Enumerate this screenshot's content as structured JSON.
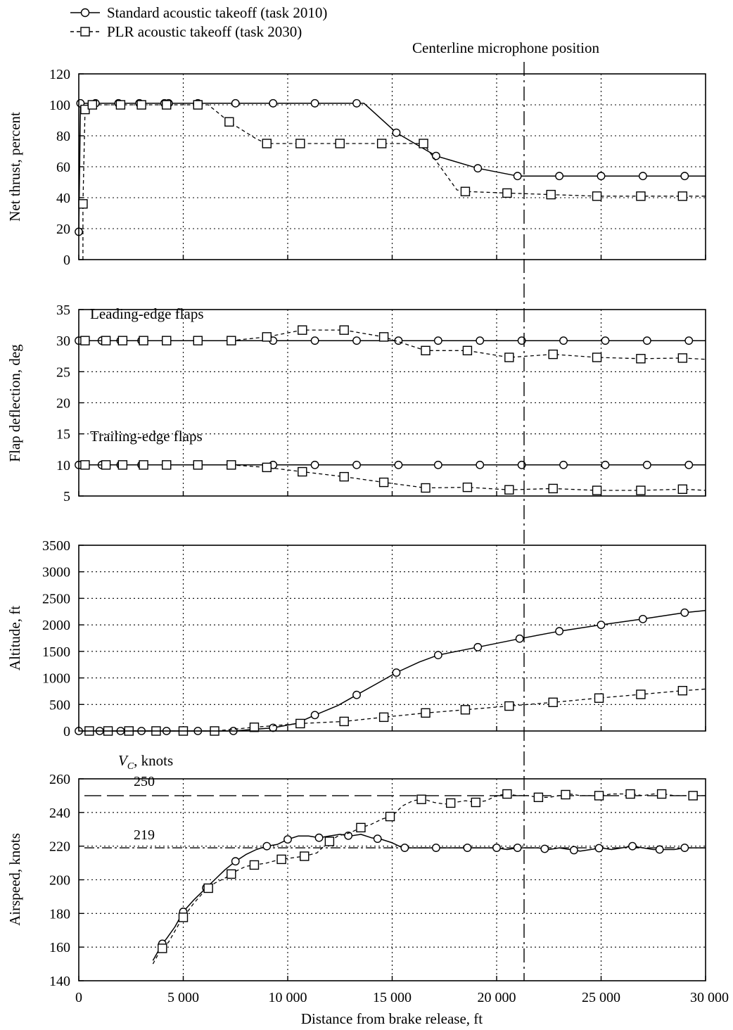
{
  "legend": {
    "standard": "Standard acoustic takeoff (task 2010)",
    "plr": "PLR acoustic takeoff (task 2030)"
  },
  "annotations": {
    "mic_label": "Centerline microphone position",
    "leading_edge": "Leading-edge flaps",
    "trailing_edge": "Trailing-edge flaps",
    "vc_label_main": "V",
    "vc_label_sub": "C",
    "vc_label_rest": ", knots",
    "line_250": "250",
    "line_219": "219"
  },
  "x_axis": {
    "label": "Distance from brake release, ft",
    "ticks": [
      0,
      5000,
      10000,
      15000,
      20000,
      25000,
      30000
    ],
    "tick_labels": [
      "0",
      "5 000",
      "10 000",
      "15 000",
      "20 000",
      "25 000",
      "30 000"
    ]
  },
  "chart_data": [
    {
      "type": "line",
      "ylabel": "Net thrust, percent",
      "xlim": [
        0,
        30000
      ],
      "ylim": [
        0,
        120
      ],
      "yticks": [
        0,
        20,
        40,
        60,
        80,
        100,
        120
      ],
      "series": [
        {
          "name": "Standard acoustic takeoff (task 2010)",
          "x": [
            0,
            80,
            800,
            1900,
            2900,
            4100,
            4300,
            5700,
            7500,
            9300,
            11300,
            13300,
            13650,
            15200,
            17100,
            19100,
            21000,
            23000,
            25000,
            27000,
            29000,
            30000
          ],
          "y": [
            18,
            101,
            101,
            101,
            101,
            101,
            101,
            101,
            101,
            101,
            101,
            101,
            101,
            82,
            67,
            59,
            54,
            54,
            54,
            54,
            54,
            54
          ],
          "markers": [
            0,
            80,
            800,
            1900,
            2900,
            4100,
            4300,
            5700,
            7500,
            9300,
            11300,
            13300,
            15200,
            17100,
            19100,
            21000,
            23000,
            25000,
            27000,
            29000
          ]
        },
        {
          "name": "PLR acoustic takeoff (task 2030)",
          "x": [
            200,
            200,
            300,
            650,
            2000,
            3000,
            4200,
            5700,
            6200,
            7200,
            8500,
            9000,
            10600,
            12500,
            14500,
            16500,
            17300,
            18100,
            18500,
            20500,
            22600,
            24800,
            26900,
            28900,
            30000
          ],
          "y": [
            0,
            36,
            97,
            100,
            100,
            100,
            100,
            100,
            100,
            89,
            78,
            75,
            75,
            75,
            75,
            75,
            60,
            45,
            44,
            43,
            42,
            41,
            41,
            41,
            41
          ],
          "markers": [
            300,
            650,
            2000,
            3000,
            4200,
            5700,
            7200,
            9000,
            10600,
            12500,
            14500,
            16500,
            18500,
            20500,
            22600,
            24800,
            26900,
            28900,
            200
          ]
        }
      ]
    },
    {
      "type": "line",
      "ylabel": "Flap deflection, deg",
      "xlim": [
        0,
        30000
      ],
      "ylim": [
        5,
        35
      ],
      "yticks": [
        5,
        10,
        15,
        20,
        25,
        30,
        35
      ],
      "series": [
        {
          "name": "Standard acoustic takeoff (task 2010) – leading edge",
          "x": [
            0,
            1100,
            2000,
            3000,
            4200,
            5700,
            7300,
            9300,
            11300,
            13300,
            15300,
            17200,
            19200,
            21200,
            23200,
            25200,
            27200,
            29200,
            30000
          ],
          "y": [
            30,
            30,
            30,
            30,
            30,
            30,
            30,
            30,
            30,
            30,
            30,
            30,
            30,
            30,
            30,
            30,
            30,
            30,
            30
          ],
          "markers": [
            0,
            1100,
            2000,
            3000,
            4200,
            5700,
            7300,
            9300,
            11300,
            13300,
            15300,
            17200,
            19200,
            21200,
            23200,
            25200,
            27200,
            29200
          ]
        },
        {
          "name": "Standard acoustic takeoff (task 2010) – trailing edge",
          "x": [
            0,
            1100,
            2000,
            3000,
            4200,
            5700,
            7300,
            9300,
            11300,
            13300,
            15300,
            17200,
            19200,
            21200,
            23200,
            25200,
            27200,
            29200,
            30000
          ],
          "y": [
            10,
            10,
            10,
            10,
            10,
            10,
            10,
            10,
            10,
            10,
            10,
            10,
            10,
            10,
            10,
            10,
            10,
            10,
            10
          ],
          "markers": [
            0,
            1100,
            2000,
            3000,
            4200,
            5700,
            7300,
            9300,
            11300,
            13300,
            15300,
            17200,
            19200,
            21200,
            23200,
            25200,
            27200,
            29200
          ]
        },
        {
          "name": "PLR acoustic takeoff (task 2030) – leading edge",
          "x": [
            300,
            1300,
            2100,
            3100,
            4200,
            5700,
            7300,
            9000,
            10700,
            12700,
            14600,
            16600,
            18600,
            20600,
            22700,
            24800,
            26900,
            28900,
            30000
          ],
          "y": [
            30,
            30,
            30,
            30,
            30,
            30,
            30,
            30.6,
            31.7,
            31.7,
            30.6,
            28.4,
            28.4,
            27.3,
            27.8,
            27.3,
            27.1,
            27.2,
            27.0
          ],
          "markers": [
            300,
            1300,
            2100,
            3100,
            4200,
            5700,
            7300,
            9000,
            10700,
            12700,
            14600,
            16600,
            18600,
            20600,
            22700,
            24800,
            26900,
            28900
          ]
        },
        {
          "name": "PLR acoustic takeoff (task 2030) – trailing edge",
          "x": [
            300,
            1300,
            2100,
            3100,
            4200,
            5700,
            7300,
            9000,
            10700,
            12700,
            14600,
            16600,
            18600,
            20600,
            22700,
            24800,
            26900,
            28900,
            30000
          ],
          "y": [
            10,
            10,
            10,
            10,
            10,
            10,
            10,
            9.6,
            8.9,
            8.1,
            7.2,
            6.3,
            6.4,
            6.0,
            6.2,
            5.9,
            5.9,
            6.1,
            5.9
          ],
          "markers": [
            300,
            1300,
            2100,
            3100,
            4200,
            5700,
            7300,
            9000,
            10700,
            12700,
            14600,
            16600,
            18600,
            20600,
            22700,
            24800,
            26900,
            28900
          ]
        }
      ]
    },
    {
      "type": "line",
      "ylabel": "Altitude, ft",
      "xlim": [
        0,
        30000
      ],
      "ylim": [
        0,
        3500
      ],
      "yticks": [
        0,
        500,
        1000,
        1500,
        2000,
        2500,
        3000,
        3500
      ],
      "series": [
        {
          "name": "Standard acoustic takeoff (task 2010)",
          "x": [
            0,
            1000,
            2000,
            3000,
            4200,
            5700,
            7400,
            9300,
            10400,
            11300,
            12400,
            13300,
            14300,
            15200,
            16300,
            17200,
            19100,
            21100,
            23000,
            25000,
            27000,
            29000,
            30000
          ],
          "y": [
            0,
            0,
            0,
            0,
            0,
            0,
            0,
            60,
            140,
            300,
            480,
            680,
            900,
            1100,
            1300,
            1430,
            1580,
            1740,
            1880,
            2000,
            2110,
            2230,
            2270
          ],
          "markers": [
            0,
            1000,
            2000,
            3000,
            4200,
            5700,
            7400,
            9300,
            11300,
            13300,
            15200,
            17200,
            19100,
            21100,
            23000,
            25000,
            27000,
            29000
          ]
        },
        {
          "name": "PLR acoustic takeoff (task 2030)",
          "x": [
            500,
            1400,
            2400,
            3700,
            5000,
            6500,
            8400,
            10600,
            12700,
            14600,
            16600,
            18500,
            20600,
            22700,
            24900,
            26900,
            28900,
            30000
          ],
          "y": [
            0,
            0,
            0,
            0,
            0,
            0,
            70,
            140,
            180,
            260,
            340,
            400,
            470,
            540,
            620,
            690,
            760,
            790
          ],
          "markers": [
            500,
            1400,
            2400,
            3700,
            5000,
            6500,
            8400,
            10600,
            12700,
            14600,
            16600,
            18500,
            20600,
            22700,
            24900,
            26900,
            28900
          ]
        }
      ]
    },
    {
      "type": "line",
      "ylabel": "Airspeed, knots",
      "xlim": [
        0,
        30000
      ],
      "ylim": [
        140,
        260
      ],
      "yticks": [
        140,
        160,
        180,
        200,
        220,
        240,
        260
      ],
      "hlines": [
        {
          "label": "250",
          "value": 250
        },
        {
          "label": "219",
          "value": 219
        }
      ],
      "series": [
        {
          "name": "Standard acoustic takeoff (task 2010)",
          "x": [
            3550,
            4000,
            4200,
            4600,
            5000,
            5500,
            6000,
            6500,
            7000,
            7500,
            8000,
            8500,
            9000,
            9500,
            10000,
            10500,
            11000,
            11500,
            12000,
            12500,
            13000,
            13500,
            14000,
            14500,
            15000,
            15500,
            16000,
            16500,
            17000,
            17500,
            18000,
            18500,
            19000,
            19500,
            20000,
            20500,
            21000,
            21500,
            22000,
            22500,
            23000,
            23500,
            24000,
            24500,
            25000,
            25500,
            26000,
            26500,
            27000,
            27500,
            28000,
            28500,
            29000,
            29500,
            30000
          ],
          "y": [
            152,
            162,
            165,
            172,
            181,
            188,
            194,
            200,
            206,
            211,
            215,
            218,
            220,
            221,
            224,
            226,
            226,
            225,
            226,
            227,
            226,
            227,
            225,
            224,
            222,
            219,
            219,
            219,
            219,
            219,
            219,
            219,
            219,
            219,
            219,
            218,
            219,
            219,
            219,
            218,
            219,
            218,
            217,
            218,
            219,
            218,
            219,
            220,
            219,
            218,
            218,
            218,
            219,
            219,
            219
          ],
          "markers": [
            4000,
            5000,
            6100,
            7500,
            9000,
            10000,
            11500,
            12900,
            14300,
            15600,
            17100,
            18600,
            20000,
            21000,
            22300,
            23700,
            24900,
            26500,
            27800,
            29000
          ]
        },
        {
          "name": "PLR acoustic takeoff (task 2030)",
          "x": [
            3550,
            3900,
            4300,
            4900,
            5500,
            6000,
            6500,
            7000,
            7500,
            8000,
            8500,
            9000,
            9600,
            10200,
            10800,
            11400,
            11900,
            12400,
            13000,
            13500,
            14000,
            14500,
            15000,
            15500,
            16000,
            16500,
            17000,
            17500,
            18000,
            18500,
            19000,
            19500,
            20000,
            20500,
            21000,
            21500,
            22000,
            22500,
            23000,
            23500,
            24000,
            24500,
            25000,
            25500,
            26000,
            26500,
            27000,
            27500,
            28000,
            28500,
            29000,
            29500,
            30000
          ],
          "y": [
            150,
            158,
            163,
            176,
            186,
            193,
            198,
            201,
            205,
            208,
            209,
            210,
            212,
            213,
            214,
            216,
            222,
            226,
            228,
            231,
            233,
            236,
            238,
            244,
            247,
            248,
            246,
            245,
            246,
            247,
            246,
            247,
            250,
            251,
            250,
            250,
            249,
            249,
            250,
            251,
            250,
            250,
            250,
            251,
            251,
            251,
            250,
            251,
            251,
            250,
            250,
            250,
            250
          ],
          "markers": [
            4000,
            5000,
            6200,
            7300,
            8400,
            9700,
            10800,
            12000,
            13500,
            14900,
            16400,
            17800,
            19000,
            20500,
            22000,
            23300,
            24900,
            26400,
            27900,
            29400
          ]
        }
      ]
    }
  ]
}
